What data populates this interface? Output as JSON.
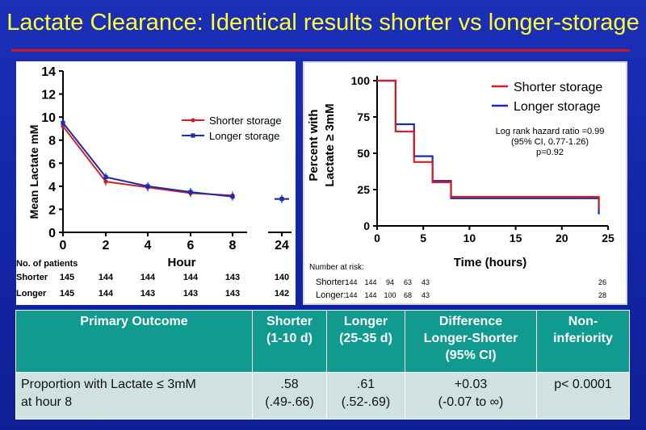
{
  "slide": {
    "title": "Lactate Clearance: Identical results shorter vs longer-storage"
  },
  "chart_data": [
    {
      "type": "line",
      "ylabel": "Mean Lactate mM",
      "xlabel": "Hour",
      "ylim": [
        0,
        14
      ],
      "yticks": [
        "0",
        "2",
        "4",
        "6",
        "8",
        "10",
        "12",
        "14"
      ],
      "categories": [
        "0",
        "2",
        "4",
        "6",
        "8",
        "24"
      ],
      "series": [
        {
          "name": "Shorter storage",
          "color": "#d32026",
          "values": [
            9.2,
            4.4,
            3.9,
            3.4,
            3.2,
            2.9
          ]
        },
        {
          "name": "Longer storage",
          "color": "#1c2bb0",
          "values": [
            9.5,
            4.8,
            4.0,
            3.5,
            3.1,
            2.9
          ]
        }
      ],
      "legend": "right",
      "patients_label": "No. of patients",
      "patients": [
        {
          "name": "Shorter",
          "counts": [
            "145",
            "144",
            "144",
            "144",
            "143",
            "140"
          ]
        },
        {
          "name": "Longer",
          "counts": [
            "145",
            "144",
            "143",
            "143",
            "143",
            "142"
          ]
        }
      ]
    },
    {
      "type": "line",
      "subtype": "kaplan-meier",
      "ylabel_line1": "Percent with",
      "ylabel_line2": "Lactate ≥ 3mM",
      "xlabel": "Time (hours)",
      "xlim": [
        0,
        25
      ],
      "ylim": [
        0,
        100
      ],
      "xticks": [
        "0",
        "5",
        "10",
        "15",
        "20",
        "25"
      ],
      "yticks": [
        "0",
        "25",
        "50",
        "75",
        "100"
      ],
      "series": [
        {
          "name": "Shorter storage",
          "color": "#d32026",
          "x": [
            0,
            2,
            2,
            4,
            4,
            6,
            6,
            8,
            8,
            24,
            24
          ],
          "y": [
            100,
            100,
            65,
            65,
            44,
            44,
            30,
            30,
            20,
            20,
            12
          ]
        },
        {
          "name": "Longer storage",
          "color": "#1c2bb0",
          "x": [
            0,
            2,
            2,
            4,
            4,
            6,
            6,
            8,
            8,
            24,
            24
          ],
          "y": [
            100,
            100,
            70,
            70,
            48,
            48,
            31,
            31,
            19,
            19,
            8
          ]
        }
      ],
      "annotation": [
        "Log rank hazard ratio =0.99",
        "(95% CI, 0.77-1.26)",
        "p=0.92"
      ],
      "risk_label": "Number at risk:",
      "risk_rows": [
        {
          "name": "Shorter:",
          "counts": [
            "144",
            "144",
            "94",
            "63",
            "43"
          ],
          "last": "26"
        },
        {
          "name": "Longer:",
          "counts": [
            "144",
            "144",
            "100",
            "68",
            "43"
          ],
          "last": "28"
        }
      ]
    }
  ],
  "table": {
    "headers": [
      {
        "line1": "Primary Outcome",
        "line2": ""
      },
      {
        "line1": "Shorter",
        "line2": "(1-10 d)"
      },
      {
        "line1": "Longer",
        "line2": "(25-35 d)"
      },
      {
        "line1": "Difference",
        "line2": "Longer-Shorter",
        "line3": "(95% CI)"
      },
      {
        "line1": "Non-",
        "line2": "inferiority"
      }
    ],
    "row": {
      "outcome_line1": "Proportion with Lactate ≤ 3mM",
      "outcome_line2": "at hour 8",
      "shorter_line1": ".58",
      "shorter_line2": "(.49-.66)",
      "longer_line1": ".61",
      "longer_line2": "(.52-.69)",
      "difference_line1": "+0.03",
      "difference_line2": "(-0.07 to ∞)",
      "noninferiority": "p< 0.0001"
    }
  }
}
